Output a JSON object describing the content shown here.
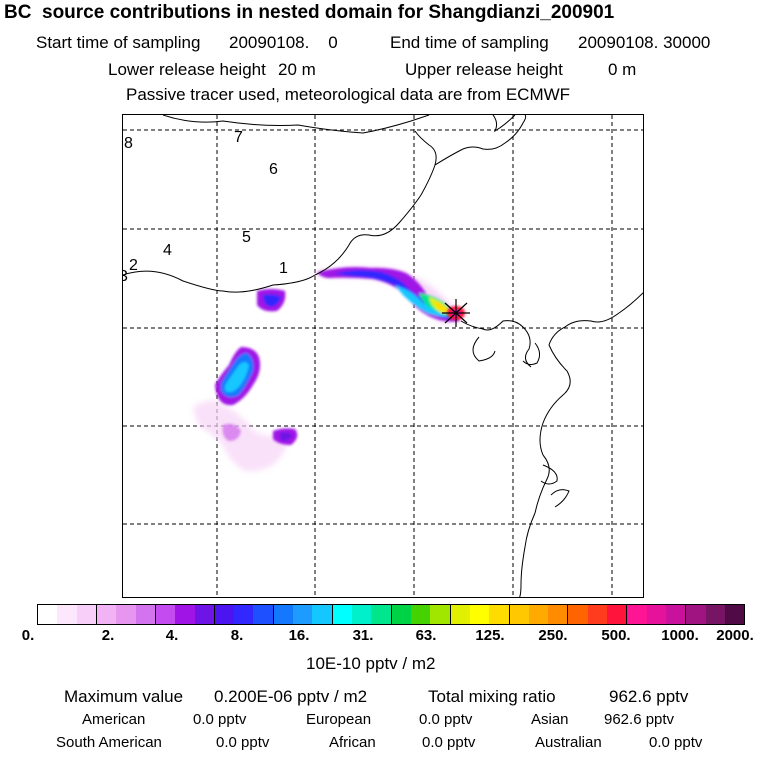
{
  "header": {
    "title": "BC  source contributions in nested domain for Shangdianzi_200901",
    "start_label": "Start time of sampling",
    "start_value": "20090108.    0",
    "end_label": "End time of sampling",
    "end_value": "20090108. 30000",
    "lower_label": "Lower release height",
    "lower_value": "20 m",
    "upper_label": "Upper release height",
    "upper_value": "0 m",
    "tracer_note": "Passive tracer used, meteorological data are from ECMWF"
  },
  "map": {
    "region_labels": [
      "1",
      "2",
      "3",
      "4",
      "5",
      "6",
      "7",
      "8"
    ],
    "receptor_marker": "asterisk-star-icon"
  },
  "legend": {
    "colors": [
      "#ffffff",
      "#fde7fd",
      "#f8cff8",
      "#f1b3f4",
      "#e796f0",
      "#d374ee",
      "#c34bef",
      "#a014e6",
      "#6e14e6",
      "#4b14f0",
      "#3228ff",
      "#1e50ff",
      "#1478ff",
      "#1e9bff",
      "#14c8ff",
      "#00ffff",
      "#00f0cc",
      "#00e68c",
      "#00d246",
      "#46d200",
      "#a0e600",
      "#e1f000",
      "#ffff00",
      "#ffdc00",
      "#ffc800",
      "#ffaa00",
      "#ff8c00",
      "#ff6400",
      "#ff3c1e",
      "#ff143c",
      "#ff1493",
      "#e6129b",
      "#c8129b",
      "#a01482",
      "#781464",
      "#500a46"
    ],
    "ticks": [
      "0.",
      "2.",
      "4.",
      "8.",
      "16.",
      "31.",
      "63.",
      "125.",
      "250.",
      "500.",
      "1000.",
      "2000."
    ],
    "unit": "10E-10 pptv / m2"
  },
  "summary": {
    "max_label": "Maximum value",
    "max_value": "0.200E-06 pptv / m2",
    "total_label": "Total mixing ratio",
    "total_value": "962.6 pptv",
    "american_label": "American",
    "american_value": "0.0 pptv",
    "european_label": "European",
    "european_value": "0.0 pptv",
    "asian_label": "Asian",
    "asian_value": "962.6 pptv",
    "south_american_label": "South American",
    "south_american_value": "0.0 pptv",
    "african_label": "African",
    "african_value": "0.0 pptv",
    "australian_label": "Australian",
    "australian_value": "0.0 pptv"
  }
}
